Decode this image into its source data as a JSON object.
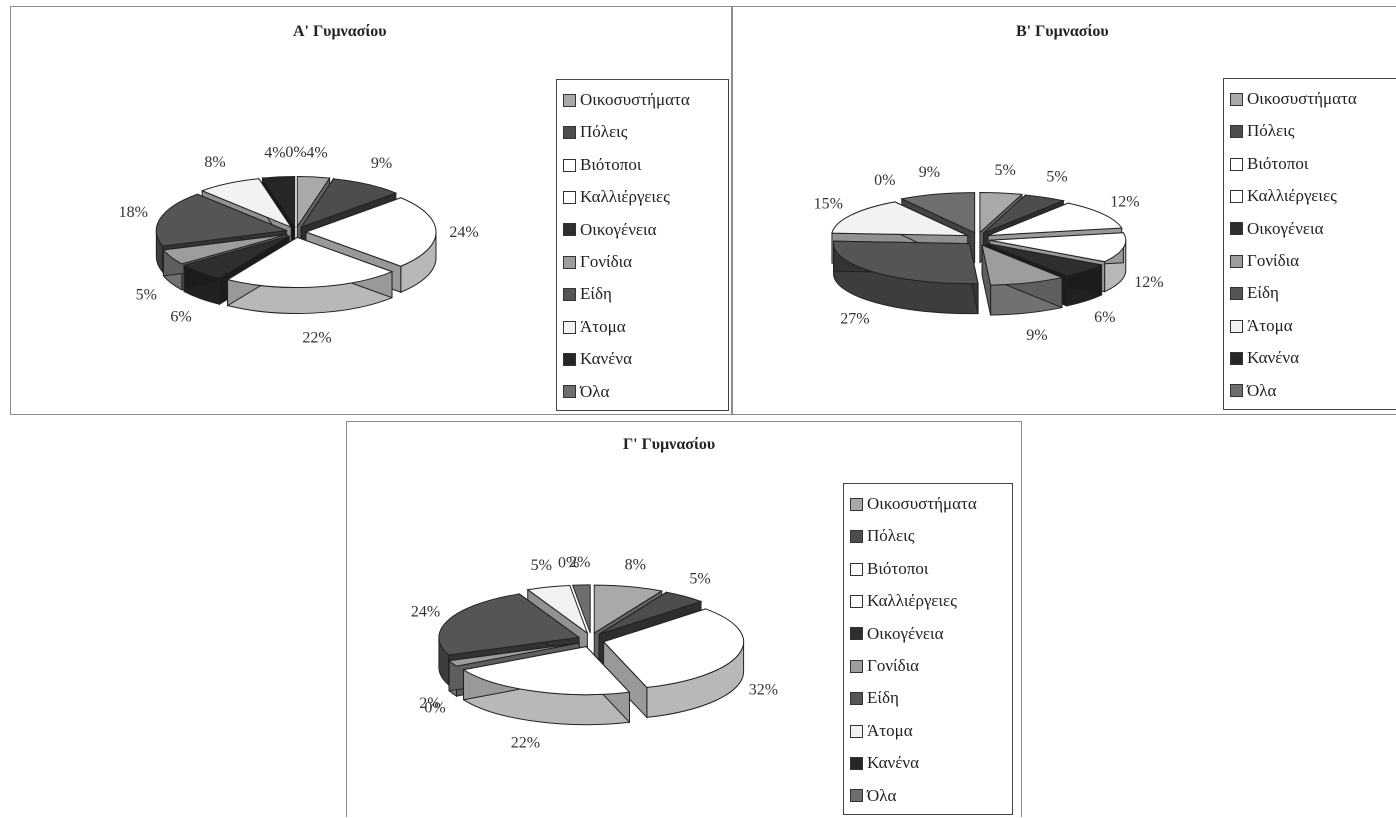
{
  "chart_data": [
    {
      "type": "pie",
      "title": "Α' Γυμνασίου",
      "categories": [
        "Οικοσυστήματα",
        "Πόλεις",
        "Βιότοποι",
        "Καλλιέργειες",
        "Οικογένεια",
        "Γονίδια",
        "Είδη",
        "Άτομα",
        "Κανένα",
        "Όλα"
      ],
      "values": [
        4,
        9,
        24,
        22,
        6,
        5,
        18,
        8,
        4,
        0
      ],
      "value_labels": [
        "4%",
        "9%",
        "24%",
        "22%",
        "6%",
        "5%",
        "18%",
        "8%",
        "4%",
        "0%"
      ],
      "legend": "right",
      "style": "3d-exploded"
    },
    {
      "type": "pie",
      "title": "Β' Γυμνασίου",
      "categories": [
        "Οικοσυστήματα",
        "Πόλεις",
        "Βιότοποι",
        "Καλλιέργειες",
        "Οικογένεια",
        "Γονίδια",
        "Είδη",
        "Άτομα",
        "Κανένα",
        "Όλα"
      ],
      "values": [
        5,
        5,
        12,
        12,
        6,
        9,
        27,
        15,
        0,
        9
      ],
      "value_labels": [
        "5%",
        "5%",
        "12%",
        "12%",
        "6%",
        "9%",
        "27%",
        "15%",
        "0%",
        "9%"
      ],
      "legend": "right",
      "style": "3d-exploded"
    },
    {
      "type": "pie",
      "title": "Γ' Γυμνασίου",
      "categories": [
        "Οικοσυστήματα",
        "Πόλεις",
        "Βιότοποι",
        "Καλλιέργειες",
        "Οικογένεια",
        "Γονίδια",
        "Είδη",
        "Άτομα",
        "Κανένα",
        "Όλα"
      ],
      "values": [
        8,
        5,
        32,
        22,
        0,
        2,
        24,
        5,
        0,
        2
      ],
      "value_labels": [
        "8%",
        "5%",
        "32%",
        "22%",
        "0%",
        "2%",
        "24%",
        "5%",
        "0%",
        "2%"
      ],
      "legend": "right",
      "style": "3d-exploded"
    }
  ],
  "colors": [
    "#a9a9a9",
    "#4d4d4d",
    "#ffffff",
    "#ffffff",
    "#2e2e2e",
    "#9d9d9d",
    "#555555",
    "#f2f2f2",
    "#262626",
    "#6e6e6e"
  ]
}
